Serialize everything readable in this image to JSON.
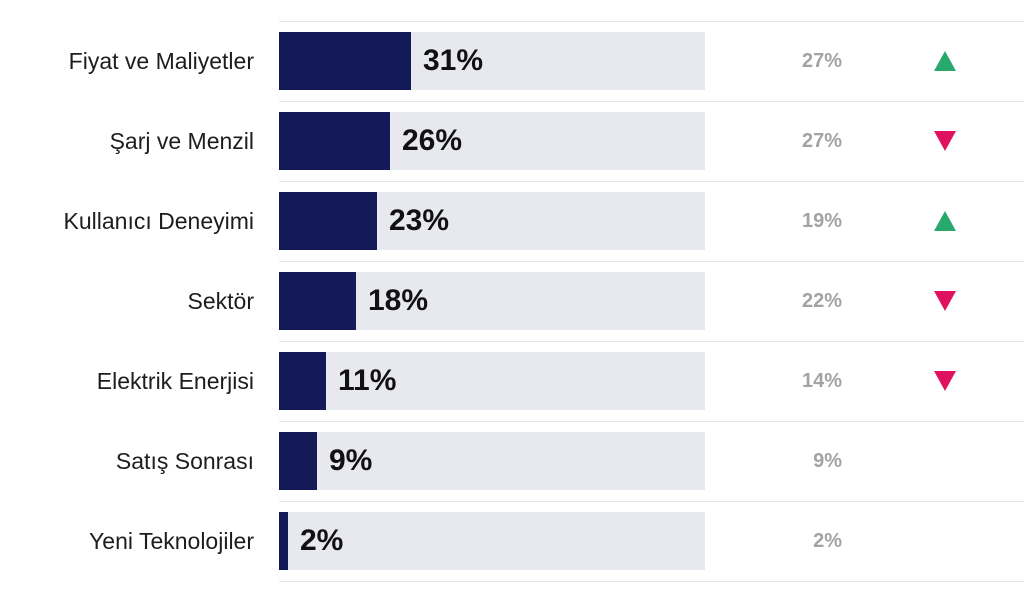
{
  "chart_data": {
    "type": "bar",
    "orientation": "horizontal",
    "categories": [
      "Fiyat ve Maliyetler",
      "Şarj ve Menzil",
      "Kullanıcı Deneyimi",
      "Sektör",
      "Elektrik Enerjisi",
      "Satış Sonrası",
      "Yeni Teknolojiler"
    ],
    "values": [
      31,
      26,
      23,
      18,
      11,
      9,
      2
    ],
    "value_labels": [
      "31%",
      "26%",
      "23%",
      "18%",
      "11%",
      "9%",
      "2%"
    ],
    "previous_labels": [
      "27%",
      "27%",
      "19%",
      "22%",
      "14%",
      "9%",
      "2%"
    ],
    "trends": [
      "up",
      "down",
      "up",
      "down",
      "down",
      "none",
      "none"
    ],
    "xlim": [
      0,
      100
    ],
    "title": "",
    "xlabel": "",
    "ylabel": "",
    "grid": false,
    "legend": "none",
    "colors": {
      "bar": "#141a57",
      "track": "#e7e9ee",
      "up": "#27a96c",
      "down": "#e0115f",
      "previous_text": "#a3a3a3"
    }
  }
}
